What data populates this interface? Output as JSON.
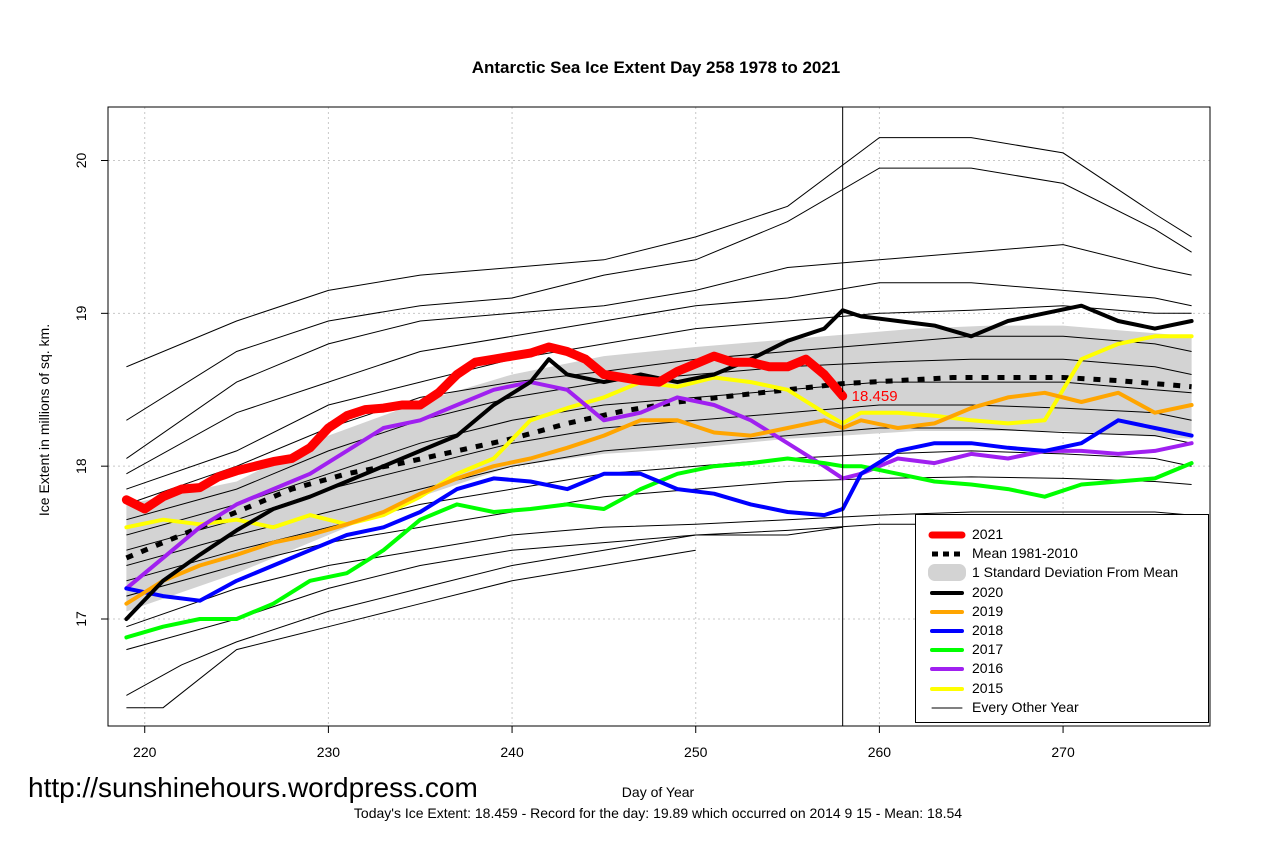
{
  "chart_data": {
    "type": "line",
    "title": "Antarctic Sea Ice Extent Day 258 1978 to 2021",
    "xlabel": "Day of Year",
    "ylabel": "Ice Extent in millions of sq. km.",
    "xlim": [
      218,
      278
    ],
    "ylim": [
      16.3,
      20.35
    ],
    "x_ticks": [
      220,
      230,
      240,
      250,
      260,
      270
    ],
    "y_ticks": [
      17,
      18,
      19,
      20
    ],
    "grid": true,
    "current_day": 258,
    "today_value_label": "18.459",
    "legend_position": "bottom-right",
    "mean_band": {
      "name": "1 Standard Deviation From Mean",
      "color": "#d3d3d3",
      "x": [
        219,
        225,
        230,
        235,
        240,
        245,
        250,
        255,
        258,
        262,
        266,
        270,
        274,
        277
      ],
      "lower": [
        17.05,
        17.3,
        17.55,
        17.8,
        18.0,
        18.08,
        18.12,
        18.18,
        18.2,
        18.23,
        18.23,
        18.23,
        18.2,
        18.18
      ],
      "upper": [
        17.75,
        17.9,
        18.2,
        18.42,
        18.6,
        18.72,
        18.78,
        18.83,
        18.86,
        18.9,
        18.92,
        18.92,
        18.88,
        18.85
      ]
    },
    "background_years": {
      "name": "Every Other Year",
      "color": "#000000",
      "series": [
        {
          "x": [
            219,
            225,
            230,
            235,
            240,
            245,
            250,
            255,
            260,
            265,
            270,
            275,
            277
          ],
          "values": [
            18.65,
            18.95,
            19.15,
            19.25,
            19.3,
            19.35,
            19.5,
            19.7,
            20.15,
            20.15,
            20.05,
            19.65,
            19.5
          ]
        },
        {
          "x": [
            219,
            225,
            230,
            235,
            240,
            245,
            250,
            255,
            260,
            265,
            270,
            275,
            277
          ],
          "values": [
            18.3,
            18.75,
            18.95,
            19.05,
            19.1,
            19.25,
            19.35,
            19.6,
            19.95,
            19.95,
            19.85,
            19.55,
            19.4
          ]
        },
        {
          "x": [
            219,
            225,
            230,
            235,
            240,
            245,
            250,
            255,
            260,
            265,
            270,
            275,
            277
          ],
          "values": [
            18.05,
            18.55,
            18.8,
            18.95,
            19.0,
            19.05,
            19.15,
            19.3,
            19.35,
            19.4,
            19.45,
            19.3,
            19.25
          ]
        },
        {
          "x": [
            219,
            225,
            230,
            235,
            240,
            245,
            250,
            255,
            260,
            265,
            270,
            275,
            277
          ],
          "values": [
            17.95,
            18.35,
            18.55,
            18.75,
            18.85,
            18.95,
            19.05,
            19.1,
            19.2,
            19.2,
            19.15,
            19.1,
            19.05
          ]
        },
        {
          "x": [
            219,
            225,
            230,
            235,
            240,
            245,
            250,
            255,
            260,
            265,
            270,
            275,
            277
          ],
          "values": [
            17.85,
            18.1,
            18.4,
            18.55,
            18.7,
            18.8,
            18.9,
            18.95,
            19.0,
            19.02,
            19.05,
            19.0,
            19.0
          ]
        },
        {
          "x": [
            219,
            225,
            230,
            235,
            240,
            245,
            250,
            255,
            260,
            265,
            270,
            275,
            277
          ],
          "values": [
            17.75,
            18.0,
            18.25,
            18.45,
            18.55,
            18.62,
            18.7,
            18.75,
            18.8,
            18.85,
            18.85,
            18.8,
            18.75
          ]
        },
        {
          "x": [
            219,
            225,
            230,
            235,
            240,
            245,
            250,
            255,
            260,
            265,
            270,
            275,
            277
          ],
          "values": [
            17.65,
            17.85,
            18.1,
            18.3,
            18.45,
            18.55,
            18.6,
            18.65,
            18.68,
            18.7,
            18.7,
            18.65,
            18.6
          ]
        },
        {
          "x": [
            219,
            225,
            230,
            235,
            240,
            245,
            250,
            255,
            260,
            265,
            270,
            275,
            277
          ],
          "values": [
            17.55,
            17.75,
            17.95,
            18.15,
            18.3,
            18.4,
            18.45,
            18.5,
            18.55,
            18.55,
            18.55,
            18.5,
            18.48
          ]
        },
        {
          "x": [
            219,
            225,
            230,
            235,
            240,
            245,
            250,
            255,
            260,
            265,
            270,
            275,
            277
          ],
          "values": [
            17.45,
            17.65,
            17.85,
            18.0,
            18.15,
            18.25,
            18.3,
            18.35,
            18.4,
            18.4,
            18.38,
            18.35,
            18.3
          ]
        },
        {
          "x": [
            219,
            225,
            230,
            235,
            240,
            245,
            250,
            255,
            260,
            265,
            270,
            275,
            277
          ],
          "values": [
            17.35,
            17.55,
            17.7,
            17.85,
            18.0,
            18.1,
            18.15,
            18.2,
            18.25,
            18.25,
            18.22,
            18.2,
            18.15
          ]
        },
        {
          "x": [
            219,
            225,
            230,
            235,
            240,
            245,
            250,
            255,
            260,
            265,
            270,
            275,
            277
          ],
          "values": [
            17.25,
            17.45,
            17.6,
            17.75,
            17.85,
            17.95,
            18.0,
            18.05,
            18.08,
            18.1,
            18.08,
            18.05,
            18.0
          ]
        },
        {
          "x": [
            219,
            225,
            230,
            235,
            240,
            245,
            250,
            255,
            260,
            265,
            270,
            275,
            277
          ],
          "values": [
            17.15,
            17.35,
            17.5,
            17.6,
            17.7,
            17.8,
            17.85,
            17.9,
            17.92,
            17.93,
            17.92,
            17.9,
            17.88
          ]
        },
        {
          "x": [
            219,
            225,
            230,
            235,
            240,
            245,
            250,
            255,
            260,
            265,
            270,
            275,
            277
          ],
          "values": [
            16.95,
            17.2,
            17.35,
            17.45,
            17.55,
            17.6,
            17.62,
            17.65,
            17.68,
            17.7,
            17.7,
            17.7,
            17.68
          ]
        },
        {
          "x": [
            219,
            225,
            230,
            235,
            240,
            245,
            250,
            255,
            260,
            265,
            270,
            275,
            277
          ],
          "values": [
            16.8,
            17.0,
            17.2,
            17.35,
            17.45,
            17.5,
            17.55,
            17.58,
            17.62,
            17.62,
            17.55,
            17.6,
            17.68
          ]
        },
        {
          "x": [
            219,
            222,
            225,
            230,
            235,
            240,
            245,
            250,
            255,
            258
          ],
          "values": [
            16.5,
            16.7,
            16.85,
            17.05,
            17.2,
            17.35,
            17.45,
            17.55,
            17.55,
            17.6
          ]
        },
        {
          "x": [
            219,
            221,
            225,
            230,
            235,
            240,
            245,
            250
          ],
          "values": [
            16.42,
            16.42,
            16.8,
            16.95,
            17.1,
            17.25,
            17.35,
            17.45
          ]
        }
      ]
    },
    "series": [
      {
        "name": "Mean 1981-2010",
        "color": "#000000",
        "style": "dashed",
        "x": [
          219,
          222,
          225,
          228,
          231,
          234,
          237,
          240,
          243,
          246,
          249,
          252,
          255,
          258,
          261,
          264,
          267,
          270,
          273,
          277
        ],
        "values": [
          17.4,
          17.55,
          17.7,
          17.85,
          17.95,
          18.02,
          18.1,
          18.18,
          18.28,
          18.36,
          18.42,
          18.46,
          18.5,
          18.54,
          18.56,
          18.58,
          18.58,
          18.58,
          18.56,
          18.52
        ]
      },
      {
        "name": "2015",
        "color": "#ffff00",
        "x": [
          219,
          221,
          223,
          225,
          227,
          229,
          231,
          233,
          235,
          237,
          239,
          241,
          243,
          245,
          247,
          249,
          251,
          253,
          255,
          257,
          258,
          259,
          261,
          263,
          265,
          267,
          269,
          271,
          273,
          275,
          277
        ],
        "values": [
          17.6,
          17.65,
          17.62,
          17.65,
          17.6,
          17.68,
          17.62,
          17.68,
          17.8,
          17.95,
          18.05,
          18.3,
          18.38,
          18.45,
          18.55,
          18.52,
          18.58,
          18.55,
          18.5,
          18.35,
          18.28,
          18.35,
          18.35,
          18.33,
          18.3,
          18.28,
          18.3,
          18.7,
          18.8,
          18.85,
          18.85
        ]
      },
      {
        "name": "2016",
        "color": "#a020f0",
        "x": [
          219,
          221,
          223,
          225,
          227,
          229,
          231,
          233,
          235,
          237,
          239,
          241,
          243,
          245,
          247,
          249,
          251,
          253,
          255,
          257,
          258,
          259,
          261,
          263,
          265,
          267,
          269,
          271,
          273,
          275,
          277
        ],
        "values": [
          17.2,
          17.4,
          17.6,
          17.75,
          17.85,
          17.95,
          18.1,
          18.25,
          18.3,
          18.4,
          18.5,
          18.55,
          18.5,
          18.3,
          18.35,
          18.45,
          18.4,
          18.3,
          18.15,
          18.0,
          17.92,
          17.95,
          18.05,
          18.02,
          18.08,
          18.05,
          18.1,
          18.1,
          18.08,
          18.1,
          18.15
        ]
      },
      {
        "name": "2017",
        "color": "#00ff00",
        "x": [
          219,
          221,
          223,
          225,
          227,
          229,
          231,
          233,
          235,
          237,
          239,
          241,
          243,
          245,
          247,
          249,
          251,
          253,
          255,
          257,
          258,
          259,
          261,
          263,
          265,
          267,
          269,
          271,
          273,
          275,
          277
        ],
        "values": [
          16.88,
          16.95,
          17.0,
          17.0,
          17.1,
          17.25,
          17.3,
          17.45,
          17.65,
          17.75,
          17.7,
          17.72,
          17.75,
          17.72,
          17.85,
          17.95,
          18.0,
          18.02,
          18.05,
          18.02,
          18.0,
          18.0,
          17.95,
          17.9,
          17.88,
          17.85,
          17.8,
          17.88,
          17.9,
          17.92,
          18.02
        ]
      },
      {
        "name": "2018",
        "color": "#0000ff",
        "x": [
          219,
          221,
          223,
          225,
          227,
          229,
          231,
          233,
          235,
          237,
          239,
          241,
          243,
          245,
          247,
          249,
          251,
          253,
          255,
          257,
          258,
          259,
          261,
          263,
          265,
          267,
          269,
          271,
          273,
          275,
          277
        ],
        "values": [
          17.2,
          17.15,
          17.12,
          17.25,
          17.35,
          17.45,
          17.55,
          17.6,
          17.7,
          17.85,
          17.92,
          17.9,
          17.85,
          17.95,
          17.95,
          17.85,
          17.82,
          17.75,
          17.7,
          17.68,
          17.72,
          17.95,
          18.1,
          18.15,
          18.15,
          18.12,
          18.1,
          18.15,
          18.3,
          18.25,
          18.2
        ]
      },
      {
        "name": "2019",
        "color": "#ffa500",
        "x": [
          219,
          221,
          223,
          225,
          227,
          229,
          231,
          233,
          235,
          237,
          239,
          241,
          243,
          245,
          247,
          249,
          251,
          253,
          255,
          257,
          258,
          259,
          261,
          263,
          265,
          267,
          269,
          271,
          273,
          275,
          277
        ],
        "values": [
          17.1,
          17.25,
          17.35,
          17.42,
          17.5,
          17.55,
          17.62,
          17.7,
          17.82,
          17.92,
          18.0,
          18.05,
          18.12,
          18.2,
          18.3,
          18.3,
          18.22,
          18.2,
          18.25,
          18.3,
          18.25,
          18.3,
          18.25,
          18.28,
          18.38,
          18.45,
          18.48,
          18.42,
          18.48,
          18.35,
          18.4
        ]
      },
      {
        "name": "2020",
        "color": "#000000",
        "x": [
          219,
          221,
          223,
          225,
          227,
          229,
          231,
          233,
          235,
          237,
          239,
          241,
          242,
          243,
          245,
          247,
          249,
          251,
          253,
          255,
          257,
          258,
          259,
          261,
          263,
          265,
          267,
          269,
          271,
          273,
          275,
          277
        ],
        "values": [
          17.0,
          17.25,
          17.42,
          17.58,
          17.72,
          17.8,
          17.9,
          18.0,
          18.1,
          18.2,
          18.4,
          18.55,
          18.7,
          18.6,
          18.55,
          18.6,
          18.55,
          18.6,
          18.7,
          18.82,
          18.9,
          19.02,
          18.98,
          18.95,
          18.92,
          18.85,
          18.95,
          19.0,
          19.05,
          18.95,
          18.9,
          18.95
        ]
      },
      {
        "name": "2021",
        "color": "#ff0000",
        "x": [
          219,
          220,
          221,
          222,
          223,
          224,
          225,
          226,
          227,
          228,
          229,
          230,
          231,
          232,
          233,
          234,
          235,
          236,
          237,
          238,
          239,
          240,
          241,
          242,
          243,
          244,
          245,
          246,
          247,
          248,
          249,
          250,
          251,
          252,
          253,
          254,
          255,
          256,
          257,
          258
        ],
        "values": [
          17.78,
          17.72,
          17.8,
          17.85,
          17.86,
          17.93,
          17.97,
          18.0,
          18.03,
          18.05,
          18.12,
          18.25,
          18.33,
          18.37,
          18.38,
          18.4,
          18.4,
          18.48,
          18.6,
          18.68,
          18.7,
          18.72,
          18.74,
          18.78,
          18.75,
          18.7,
          18.6,
          18.58,
          18.56,
          18.55,
          18.62,
          18.67,
          18.72,
          18.68,
          18.68,
          18.65,
          18.65,
          18.7,
          18.6,
          18.459
        ]
      }
    ],
    "legend": [
      {
        "label": "2021",
        "color": "#ff0000",
        "kind": "thick"
      },
      {
        "label": "Mean 1981-2010",
        "color": "#000000",
        "kind": "dashed"
      },
      {
        "label": "1 Standard Deviation From Mean",
        "color": "#d3d3d3",
        "kind": "band"
      },
      {
        "label": "2020",
        "color": "#000000",
        "kind": "line"
      },
      {
        "label": "2019",
        "color": "#ffa500",
        "kind": "line"
      },
      {
        "label": "2018",
        "color": "#0000ff",
        "kind": "line"
      },
      {
        "label": "2017",
        "color": "#00ff00",
        "kind": "line"
      },
      {
        "label": "2016",
        "color": "#a020f0",
        "kind": "line"
      },
      {
        "label": "2015",
        "color": "#ffff00",
        "kind": "line"
      },
      {
        "label": "Every Other Year",
        "color": "#000000",
        "kind": "thin"
      }
    ]
  },
  "footer_text": "Today's Ice Extent: 18.459  - Record for the day: 19.89 which occurred on 2014 9 15  - Mean: 18.54",
  "watermark": "http://sunshinehours.wordpress.com"
}
